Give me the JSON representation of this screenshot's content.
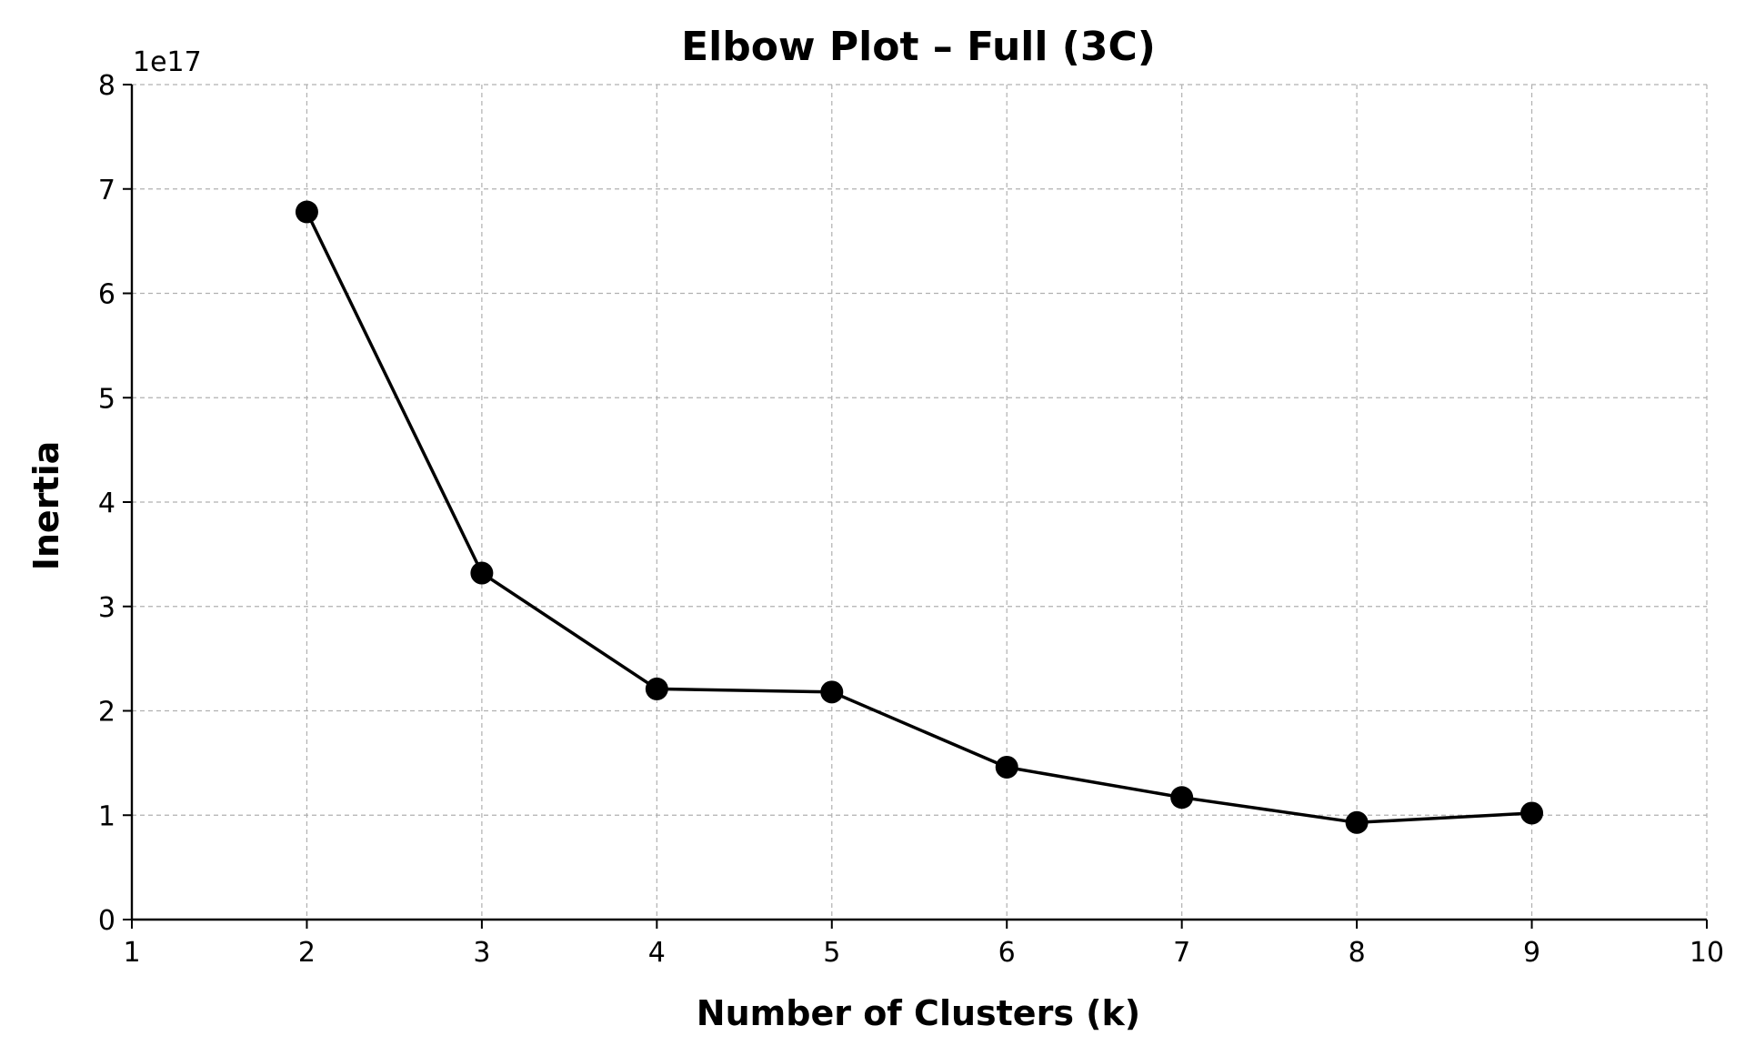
{
  "chart_data": {
    "type": "line",
    "title": "Elbow Plot – Full (3C)",
    "xlabel": "Number of Clusters (k)",
    "ylabel": "Inertia",
    "y_offset_label": "1e17",
    "y_scale_factor": 1e+17,
    "xlim": [
      1,
      10
    ],
    "ylim": [
      0,
      8
    ],
    "x_ticks": [
      "1",
      "2",
      "3",
      "4",
      "5",
      "6",
      "7",
      "8",
      "9",
      "10"
    ],
    "y_ticks": [
      "0",
      "1",
      "2",
      "3",
      "4",
      "5",
      "6",
      "7",
      "8"
    ],
    "grid": true,
    "grid_style": "dashed",
    "marker": "circle",
    "series": [
      {
        "color": "#000000",
        "x": [
          2,
          3,
          4,
          5,
          6,
          7,
          8,
          9
        ],
        "y": [
          6.78e+17,
          3.32e+17,
          2.21e+17,
          2.18e+17,
          1.46e+17,
          1.17e+17,
          9.3e+16,
          1.02e+17
        ]
      }
    ],
    "colors": {
      "line": "#000000",
      "grid": "#b0b0b0",
      "axis": "#000000"
    }
  }
}
